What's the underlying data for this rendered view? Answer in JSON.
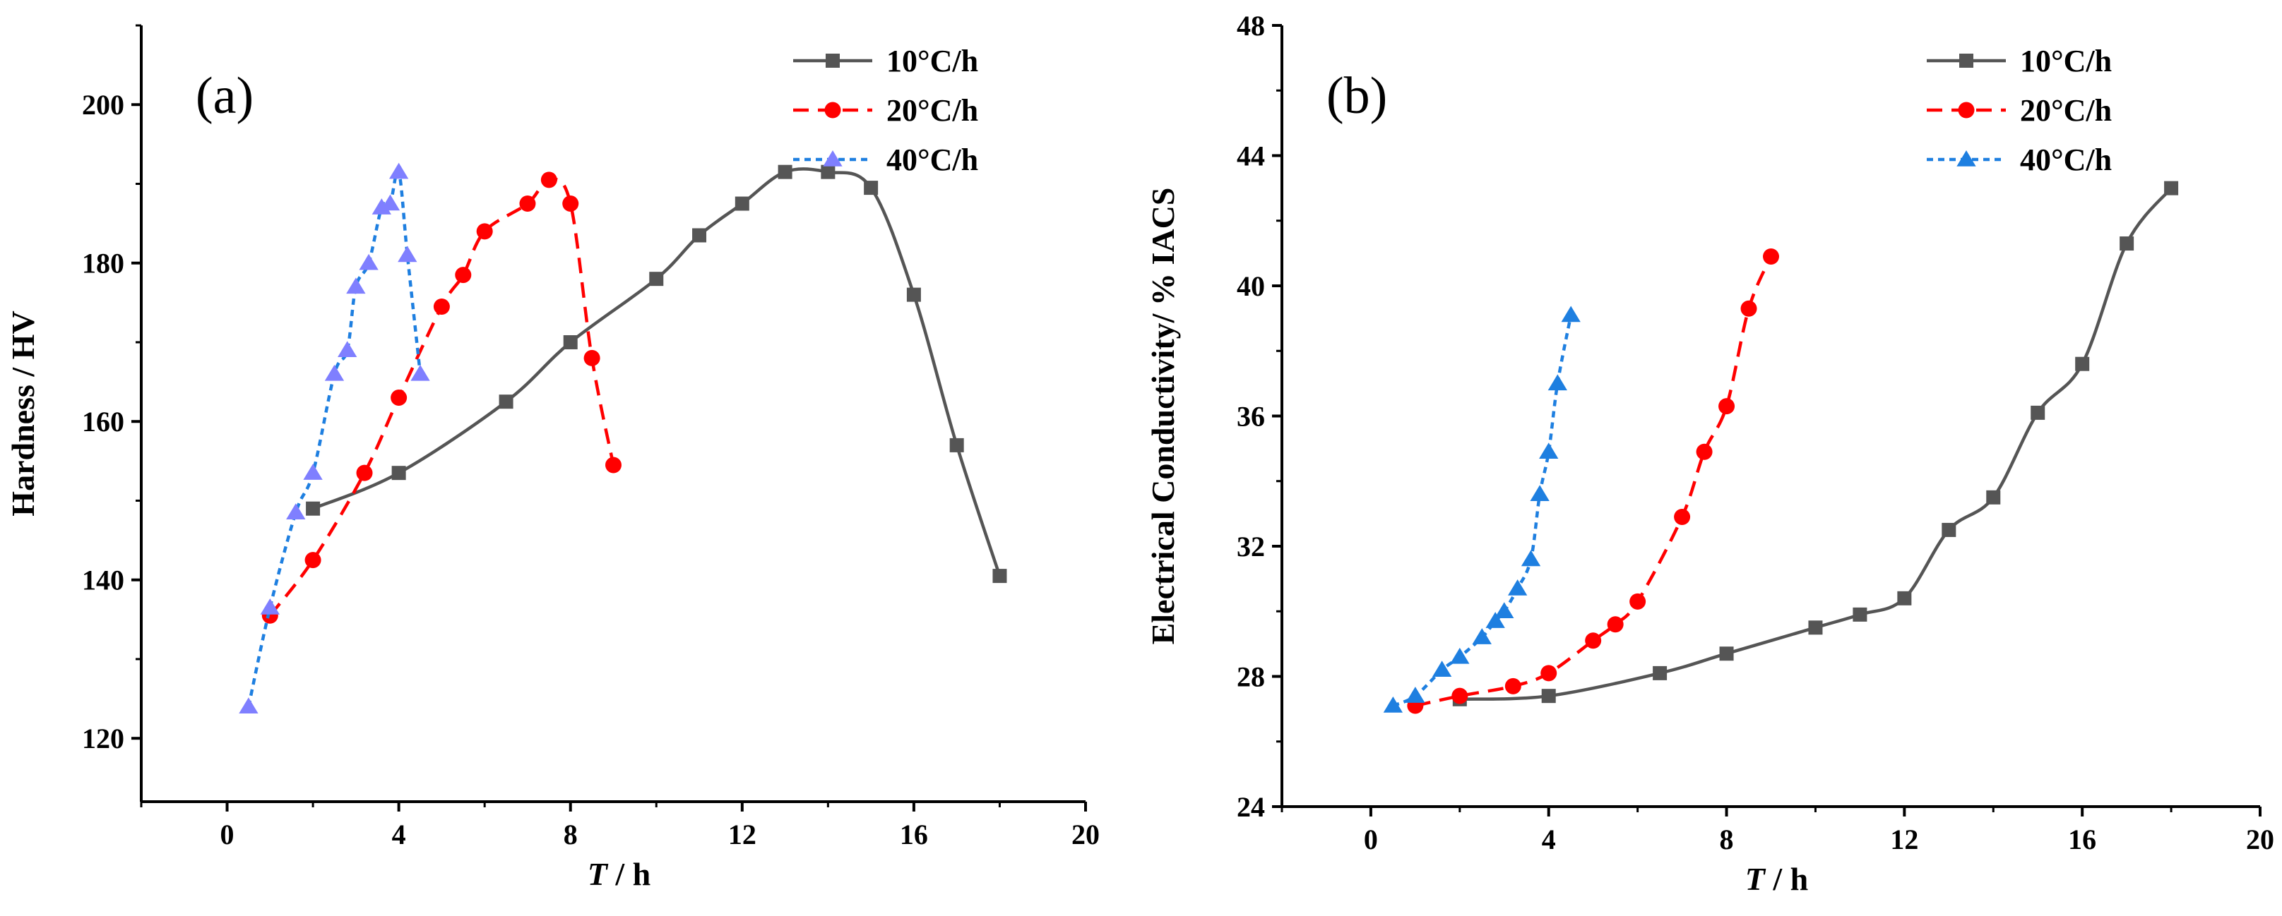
{
  "chart_data": [
    {
      "type": "line",
      "panel_label": "(a)",
      "xlabel_italic": "T",
      "xlabel_rest": " / h",
      "ylabel": "Hardness / HV",
      "xlim": [
        -2,
        20
      ],
      "ylim": [
        112,
        210
      ],
      "xticks": [
        0,
        4,
        8,
        12,
        16,
        20
      ],
      "yticks": [
        120,
        140,
        160,
        180,
        200
      ],
      "legend_position": "top-right",
      "series": [
        {
          "name": "10°C/h",
          "color": "#555555",
          "marker": "square",
          "dash": "solid",
          "x": [
            2,
            4,
            6.5,
            8,
            10,
            11,
            12,
            13,
            14,
            15,
            16,
            17,
            18
          ],
          "y": [
            149,
            153.5,
            162.5,
            170,
            178,
            183.5,
            187.5,
            191.5,
            191.5,
            189.5,
            176,
            157,
            140.5
          ]
        },
        {
          "name": "20°C/h",
          "color": "#ff0000",
          "marker": "circle",
          "dash": "dashed",
          "x": [
            1,
            2,
            3.2,
            4,
            5,
            5.5,
            6,
            7,
            7.5,
            8,
            8.5,
            9
          ],
          "y": [
            135.5,
            142.5,
            153.5,
            163,
            174.5,
            178.5,
            184,
            187.5,
            190.5,
            187.5,
            168,
            154.5
          ]
        },
        {
          "name": "40°C/h",
          "color": "#1e7fe0",
          "marker_color": "#7f7fff",
          "marker": "triangle",
          "dash": "dotted",
          "x": [
            0.5,
            1,
            1.6,
            2,
            2.5,
            2.8,
            3,
            3.3,
            3.6,
            3.8,
            4,
            4.2,
            4.5
          ],
          "y": [
            124,
            136.5,
            148.5,
            153.5,
            166,
            169,
            177,
            180,
            187,
            187.5,
            191.5,
            181,
            166
          ]
        }
      ]
    },
    {
      "type": "line",
      "panel_label": "(b)",
      "xlabel_italic": "T",
      "xlabel_rest": " / h",
      "ylabel": "Electrical Conductivity/ % IACS",
      "xlim": [
        -2,
        20
      ],
      "ylim": [
        24,
        48
      ],
      "xticks": [
        0,
        4,
        8,
        12,
        16,
        20
      ],
      "yticks": [
        24,
        28,
        32,
        36,
        40,
        44,
        48
      ],
      "legend_position": "top-right",
      "series": [
        {
          "name": "10°C/h",
          "color": "#555555",
          "marker": "square",
          "dash": "solid",
          "x": [
            2,
            4,
            6.5,
            8,
            10,
            11,
            12,
            13,
            14,
            15,
            16,
            17,
            18
          ],
          "y": [
            27.3,
            27.4,
            28.1,
            28.7,
            29.5,
            29.9,
            30.4,
            32.5,
            33.5,
            36.1,
            37.6,
            41.3,
            43
          ]
        },
        {
          "name": "20°C/h",
          "color": "#ff0000",
          "marker": "circle",
          "dash": "dashed",
          "x": [
            1,
            2,
            3.2,
            4,
            5,
            5.5,
            6,
            7,
            7.5,
            8,
            8.5,
            9
          ],
          "y": [
            27.1,
            27.4,
            27.7,
            28.1,
            29.1,
            29.6,
            30.3,
            32.9,
            34.9,
            36.3,
            39.3,
            40.9
          ]
        },
        {
          "name": "40°C/h",
          "color": "#1e7fe0",
          "marker_color": "#1e7fe0",
          "marker": "triangle",
          "dash": "dotted",
          "x": [
            0.5,
            1,
            1.6,
            2,
            2.5,
            2.8,
            3,
            3.3,
            3.6,
            3.8,
            4,
            4.2,
            4.5
          ],
          "y": [
            27.1,
            27.4,
            28.2,
            28.6,
            29.2,
            29.7,
            30,
            30.7,
            31.6,
            33.6,
            34.9,
            37,
            39.1
          ]
        }
      ]
    }
  ]
}
